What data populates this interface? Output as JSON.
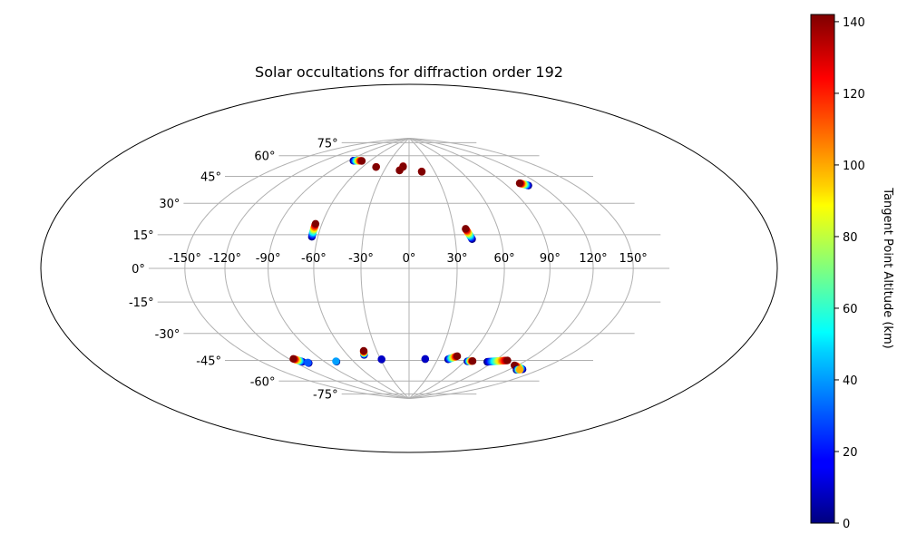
{
  "chart_data": {
    "type": "scatter",
    "projection": "hammer",
    "title": "Solar occultations for diffraction order 192",
    "colorbar": {
      "label": "Tangent Point Altitude (km)",
      "min": 0,
      "max": 142,
      "ticks": [
        "0",
        "20",
        "40",
        "60",
        "80",
        "100",
        "120",
        "140"
      ],
      "tick_values": [
        0,
        20,
        40,
        60,
        80,
        100,
        120,
        140
      ],
      "colormap": "jet",
      "placement": "right"
    },
    "lon_ticks": [
      {
        "value": -150,
        "label": "-150°"
      },
      {
        "value": -120,
        "label": "-120°"
      },
      {
        "value": -90,
        "label": "-90°"
      },
      {
        "value": -60,
        "label": "-60°"
      },
      {
        "value": -30,
        "label": "-30°"
      },
      {
        "value": 0,
        "label": "0°"
      },
      {
        "value": 30,
        "label": "30°"
      },
      {
        "value": 60,
        "label": "60°"
      },
      {
        "value": 90,
        "label": "90°"
      },
      {
        "value": 120,
        "label": "120°"
      },
      {
        "value": 150,
        "label": "150°"
      }
    ],
    "lat_ticks": [
      {
        "value": 75,
        "label": "75°"
      },
      {
        "value": 60,
        "label": "60°"
      },
      {
        "value": 45,
        "label": "45°"
      },
      {
        "value": 30,
        "label": "30°"
      },
      {
        "value": 15,
        "label": "15°"
      },
      {
        "value": 0,
        "label": "0°"
      },
      {
        "value": -15,
        "label": "-15°"
      },
      {
        "value": -30,
        "label": "-30°"
      },
      {
        "value": -45,
        "label": "-45°"
      },
      {
        "value": -60,
        "label": "-60°"
      },
      {
        "value": -75,
        "label": "-75°"
      }
    ],
    "grid": true,
    "tracks": [
      {
        "start": [
          -83.5,
          68.8
        ],
        "end": [
          -71.5,
          69.4
        ],
        "alt": [
          0,
          142
        ],
        "n": 12
      },
      {
        "start": [
          -43.0,
          66.2
        ],
        "end": [
          -43.0,
          66.0
        ],
        "alt": [
          135,
          142
        ],
        "n": 2
      },
      {
        "start": [
          -8.0,
          67.4
        ],
        "end": [
          -8.0,
          66.8
        ],
        "alt": [
          138,
          142
        ],
        "n": 2
      },
      {
        "start": [
          -11.5,
          64.4
        ],
        "end": [
          -11.5,
          64.2
        ],
        "alt": [
          135,
          142
        ],
        "n": 2
      },
      {
        "start": [
          15.0,
          63.5
        ],
        "end": [
          15.0,
          63.2
        ],
        "alt": [
          135,
          142
        ],
        "n": 2
      },
      {
        "start": [
          109.0,
          48.5
        ],
        "end": [
          104.0,
          50.5
        ],
        "alt": [
          0,
          142
        ],
        "n": 10
      },
      {
        "start": [
          -64.0,
          19.0
        ],
        "end": [
          -64.5,
          27.0
        ],
        "alt": [
          0,
          142
        ],
        "n": 12
      },
      {
        "start": [
          41.0,
          18.0
        ],
        "end": [
          38.0,
          24.5
        ],
        "alt": [
          0,
          142
        ],
        "n": 12
      },
      {
        "start": [
          -112.0,
          -55.5
        ],
        "end": [
          -116.0,
          -53.0
        ],
        "alt": [
          0,
          142
        ],
        "n": 10
      },
      {
        "start": [
          -108.0,
          -56.8
        ],
        "end": [
          -108.0,
          -56.4
        ],
        "alt": [
          0,
          30
        ],
        "n": 3
      },
      {
        "start": [
          -78.0,
          -58.3
        ],
        "end": [
          -78.0,
          -58.0
        ],
        "alt": [
          0,
          40
        ],
        "n": 2
      },
      {
        "start": [
          -44.0,
          -55.3
        ],
        "end": [
          -42.0,
          -52.5
        ],
        "alt": [
          0,
          142
        ],
        "n": 8
      },
      {
        "start": [
          -29.0,
          -59.0
        ],
        "end": [
          -29.0,
          -58.8
        ],
        "alt": [
          0,
          10
        ],
        "n": 2
      },
      {
        "start": [
          17.0,
          -59.0
        ],
        "end": [
          17.0,
          -58.8
        ],
        "alt": [
          0,
          10
        ],
        "n": 2
      },
      {
        "start": [
          41.0,
          -58.5
        ],
        "end": [
          48.0,
          -56.0
        ],
        "alt": [
          0,
          142
        ],
        "n": 10
      },
      {
        "start": [
          63.0,
          -59.0
        ],
        "end": [
          68.0,
          -58.5
        ],
        "alt": [
          0,
          142
        ],
        "n": 7
      },
      {
        "start": [
          84.0,
          -58.0
        ],
        "end": [
          102.0,
          -55.5
        ],
        "alt": [
          0,
          142
        ],
        "n": 18
      },
      {
        "start": [
          133.0,
          -58.5
        ],
        "end": [
          117.0,
          -57.5
        ],
        "alt": [
          0,
          142
        ],
        "n": 14
      },
      {
        "start": [
          128.0,
          -59.5
        ],
        "end": [
          131.0,
          -59.0
        ],
        "alt": [
          0,
          100
        ],
        "n": 4
      }
    ]
  }
}
